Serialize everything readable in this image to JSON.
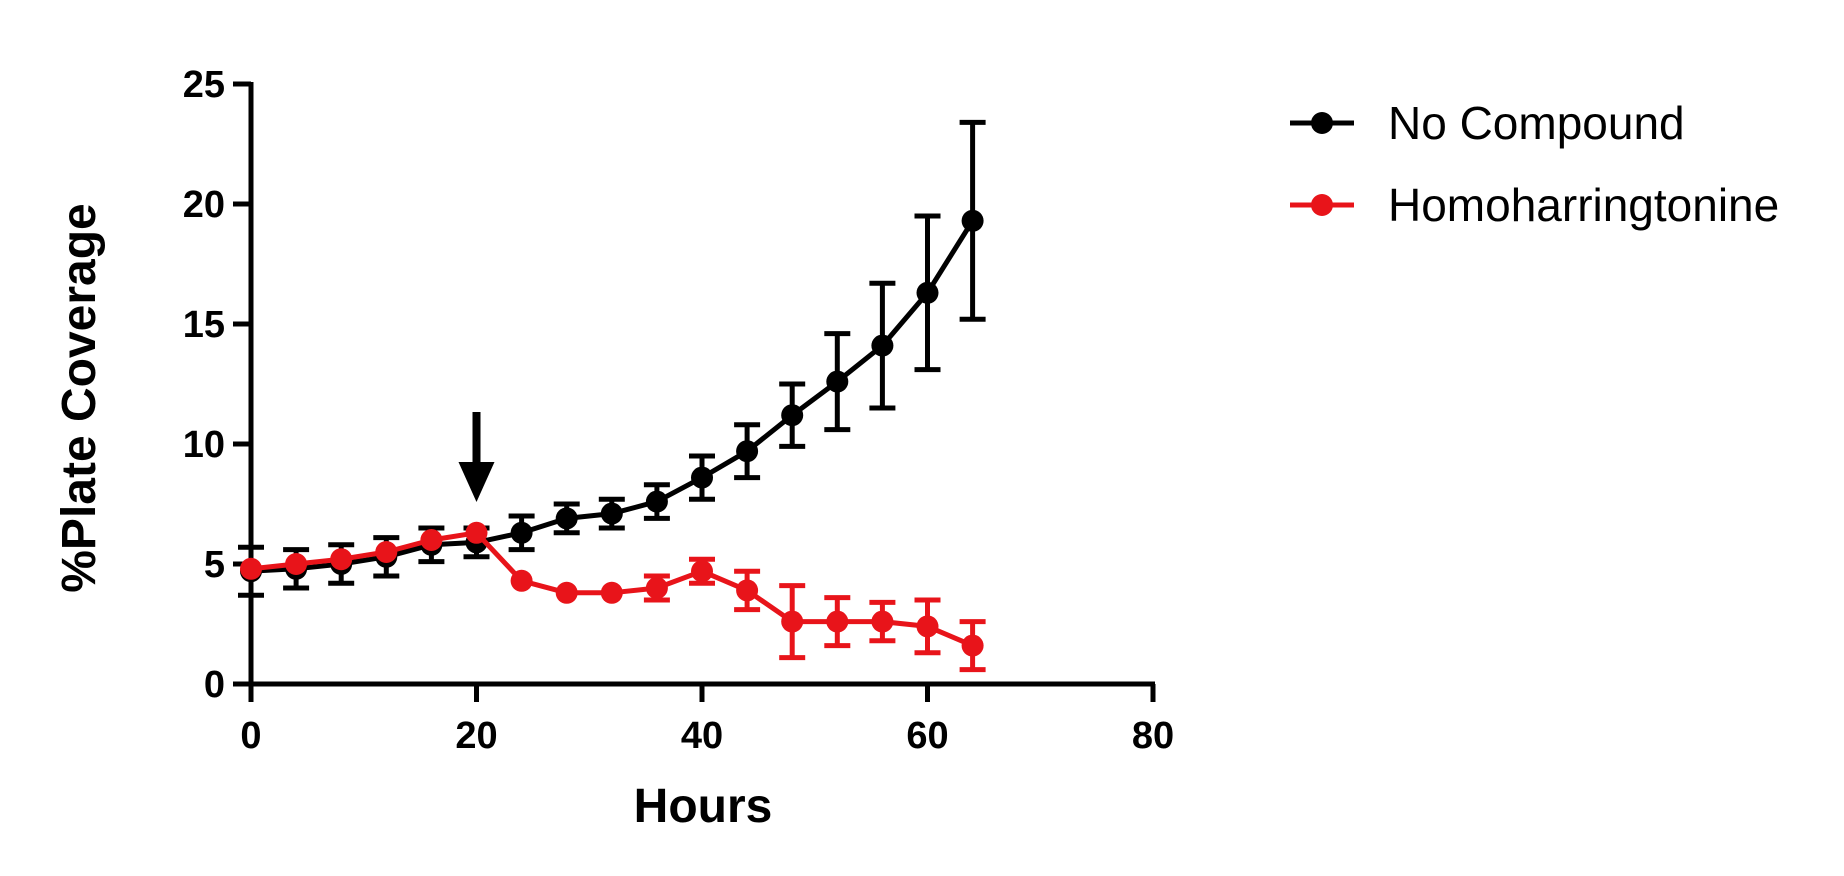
{
  "chart_data": {
    "type": "line",
    "xlabel": "Hours",
    "ylabel": "%Plate Coverage",
    "xlim": [
      0,
      80
    ],
    "ylim": [
      0,
      25
    ],
    "xticks": [
      0,
      20,
      40,
      60,
      80
    ],
    "yticks": [
      0,
      5,
      10,
      15,
      20,
      25
    ],
    "grid": false,
    "legend_position": "top-right",
    "annotation": {
      "type": "arrow-down",
      "x": 20,
      "points_to_y": 7.5
    },
    "series": [
      {
        "name": "No Compound",
        "color": "#000000",
        "x": [
          0,
          4,
          8,
          12,
          16,
          20,
          24,
          28,
          32,
          36,
          40,
          44,
          48,
          52,
          56,
          60,
          64
        ],
        "y": [
          4.7,
          4.8,
          5.0,
          5.3,
          5.8,
          5.9,
          6.3,
          6.9,
          7.1,
          7.6,
          8.6,
          9.7,
          11.2,
          12.6,
          14.1,
          16.3,
          19.3
        ],
        "err": [
          1.0,
          0.8,
          0.8,
          0.8,
          0.7,
          0.6,
          0.7,
          0.6,
          0.6,
          0.7,
          0.9,
          1.1,
          1.3,
          2.0,
          2.6,
          3.2,
          4.1
        ]
      },
      {
        "name": "Homoharringtonine",
        "color": "#e8141a",
        "x": [
          0,
          4,
          8,
          12,
          16,
          20,
          24,
          28,
          32,
          36,
          40,
          44,
          48,
          52,
          56,
          60,
          64
        ],
        "y": [
          4.8,
          5.0,
          5.2,
          5.5,
          6.0,
          6.3,
          4.3,
          3.8,
          3.8,
          4.0,
          4.7,
          3.9,
          2.6,
          2.6,
          2.6,
          2.4,
          1.6
        ],
        "err": [
          0,
          0,
          0,
          0,
          0,
          0,
          0,
          0,
          0,
          0.5,
          0.5,
          0.8,
          1.5,
          1.0,
          0.8,
          1.1,
          1.0
        ]
      }
    ]
  }
}
